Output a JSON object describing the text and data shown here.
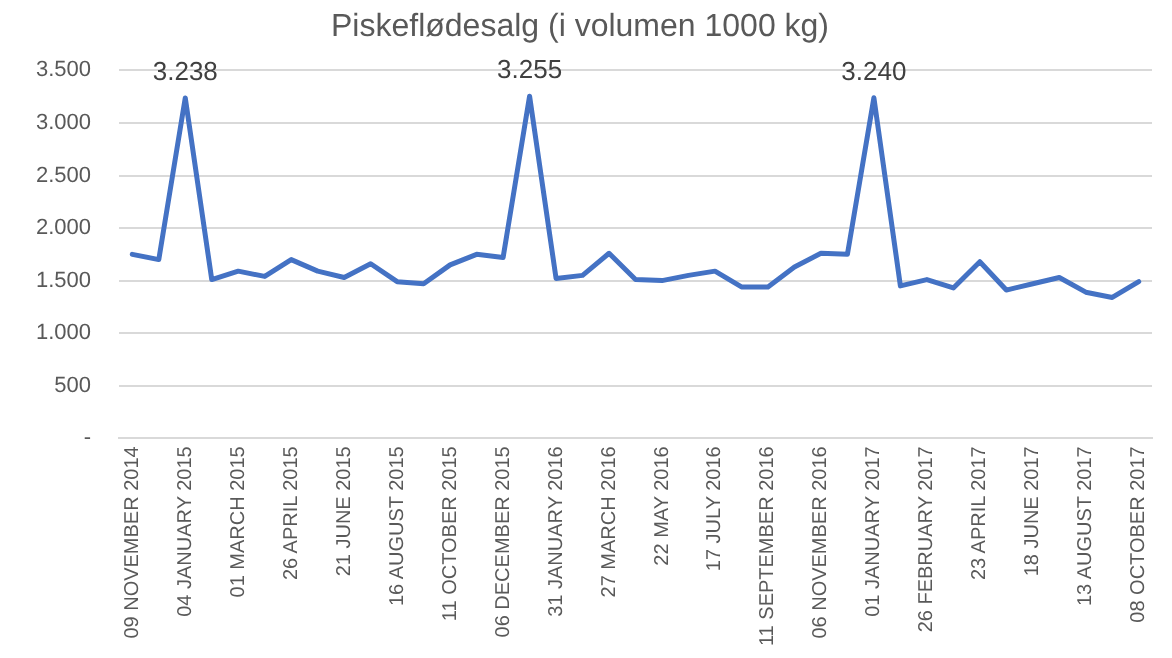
{
  "chart_data": {
    "type": "line",
    "title": "Piskeflødesalg (i volumen 1000 kg)",
    "categories": [
      "09 NOVEMBER 2014",
      null,
      "04 JANUARY 2015",
      null,
      "01 MARCH 2015",
      null,
      "26 APRIL 2015",
      null,
      "21 JUNE 2015",
      null,
      "16 AUGUST 2015",
      null,
      "11 OCTOBER 2015",
      null,
      "06 DECEMBER 2015",
      null,
      "31 JANUARY 2016",
      null,
      "27 MARCH 2016",
      null,
      "22 MAY 2016",
      null,
      "17 JULY 2016",
      null,
      "11 SEPTEMBER 2016",
      null,
      "06 NOVEMBER 2016",
      null,
      "01 JANUARY 2017",
      null,
      "26 FEBRUARY 2017",
      null,
      "23 APRIL 2017",
      null,
      "18 JUNE 2017",
      null,
      "13 AUGUST 2017",
      null,
      "08 OCTOBER 2017"
    ],
    "series": [
      {
        "color": "#4472c4",
        "values": [
          1750,
          1700,
          3238,
          1510,
          1590,
          1540,
          1700,
          1590,
          1530,
          1660,
          1490,
          1470,
          1650,
          1750,
          1720,
          3255,
          1520,
          1550,
          1760,
          1510,
          1500,
          1550,
          1590,
          1440,
          1440,
          1630,
          1760,
          1750,
          3240,
          1450,
          1510,
          1430,
          1680,
          1410,
          1470,
          1530,
          1390,
          1340,
          1490
        ],
        "value_labels": [
          null,
          null,
          "3.238",
          null,
          null,
          null,
          null,
          null,
          null,
          null,
          null,
          null,
          null,
          null,
          null,
          "3.255",
          null,
          null,
          null,
          null,
          null,
          null,
          null,
          null,
          null,
          null,
          null,
          null,
          "3.240",
          null,
          null,
          null,
          null,
          null,
          null,
          null,
          null,
          null,
          null
        ]
      }
    ],
    "ylim": [
      0,
      3500
    ],
    "yticks": [
      {
        "value": 0,
        "label": "-"
      },
      {
        "value": 500,
        "label": "500"
      },
      {
        "value": 1000,
        "label": "1.000"
      },
      {
        "value": 1500,
        "label": "1.500"
      },
      {
        "value": 2000,
        "label": "2.000"
      },
      {
        "value": 2500,
        "label": "2.500"
      },
      {
        "value": 3000,
        "label": "3.000"
      },
      {
        "value": 3500,
        "label": "3.500"
      }
    ],
    "grid": "y",
    "legend": false,
    "marker": "none",
    "line_style": "solid"
  }
}
